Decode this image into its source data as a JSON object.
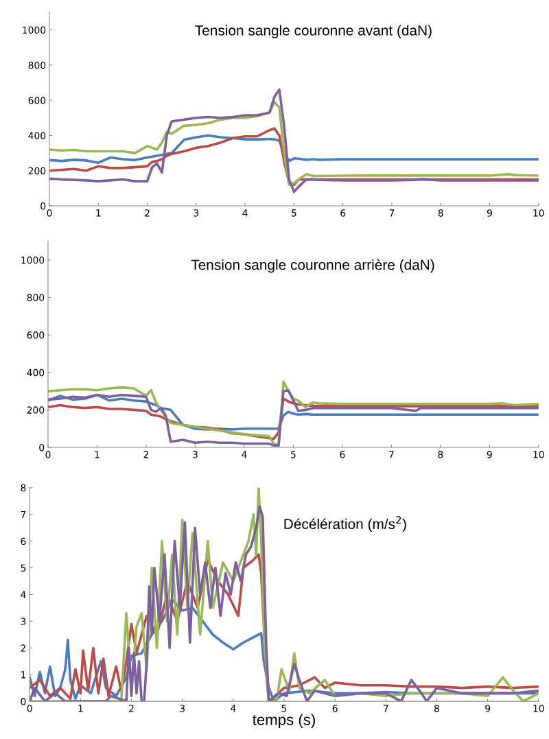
{
  "chart_data": [
    {
      "type": "line",
      "title": "Tension sangle couronne avant (daN)",
      "xlim": [
        0,
        10
      ],
      "xticks": [
        0,
        1,
        2,
        3,
        4,
        5,
        6,
        7,
        8,
        9,
        10
      ],
      "ylim": [
        0,
        1100
      ],
      "yticks": [
        0,
        200,
        400,
        600,
        800,
        1000
      ],
      "grid": false,
      "legend": false,
      "x": [
        0,
        0.25,
        0.5,
        0.75,
        1,
        1.25,
        1.5,
        1.75,
        2,
        2.1,
        2.2,
        2.3,
        2.4,
        2.5,
        2.75,
        3,
        3.25,
        3.5,
        3.75,
        4,
        4.25,
        4.5,
        4.6,
        4.7,
        4.8,
        4.9,
        5,
        5.1,
        5.25,
        5.4,
        5.5,
        6,
        6.5,
        7,
        7.5,
        7.6,
        8,
        8.5,
        9,
        9.4,
        9.5,
        10
      ],
      "series": [
        {
          "color": "#4a7ebb",
          "values": [
            260,
            255,
            262,
            258,
            245,
            275,
            265,
            260,
            275,
            280,
            285,
            290,
            295,
            300,
            375,
            390,
            400,
            390,
            385,
            378,
            378,
            380,
            378,
            370,
            300,
            255,
            270,
            268,
            262,
            265,
            262,
            265,
            265,
            265,
            265,
            265,
            265,
            265,
            265,
            265,
            265,
            265
          ]
        },
        {
          "color": "#be4b48",
          "values": [
            200,
            205,
            210,
            200,
            225,
            215,
            215,
            220,
            225,
            250,
            255,
            265,
            285,
            295,
            310,
            330,
            340,
            360,
            385,
            395,
            395,
            430,
            440,
            400,
            250,
            130,
            120,
            150,
            150,
            150,
            150,
            150,
            150,
            150,
            150,
            150,
            150,
            150,
            150,
            150,
            150,
            150
          ]
        },
        {
          "color": "#98b954",
          "values": [
            320,
            315,
            318,
            310,
            310,
            310,
            310,
            300,
            340,
            330,
            320,
            360,
            420,
            410,
            455,
            460,
            470,
            490,
            500,
            500,
            510,
            530,
            590,
            560,
            300,
            120,
            130,
            150,
            180,
            170,
            170,
            172,
            172,
            172,
            172,
            172,
            172,
            172,
            172,
            180,
            175,
            172
          ]
        },
        {
          "color": "#7d60a0",
          "values": [
            155,
            150,
            148,
            145,
            140,
            145,
            150,
            140,
            140,
            220,
            240,
            190,
            400,
            480,
            490,
            500,
            505,
            500,
            505,
            515,
            515,
            530,
            620,
            660,
            450,
            150,
            80,
            110,
            150,
            150,
            148,
            145,
            145,
            145,
            148,
            152,
            145,
            145,
            145,
            145,
            145,
            145
          ]
        }
      ]
    },
    {
      "type": "line",
      "title": "Tension sangle couronne arrière (daN)",
      "xlim": [
        0,
        10
      ],
      "xticks": [
        0,
        1,
        2,
        3,
        4,
        5,
        6,
        7,
        8,
        9,
        10
      ],
      "ylim": [
        0,
        1100
      ],
      "yticks": [
        0,
        200,
        400,
        600,
        800,
        1000
      ],
      "grid": false,
      "legend": false,
      "x": [
        0,
        0.25,
        0.5,
        0.75,
        1,
        1.25,
        1.5,
        1.75,
        2,
        2.1,
        2.2,
        2.3,
        2.4,
        2.5,
        2.75,
        3,
        3.25,
        3.5,
        3.75,
        4,
        4.25,
        4.5,
        4.6,
        4.7,
        4.8,
        4.9,
        5,
        5.1,
        5.25,
        5.4,
        5.5,
        6,
        6.5,
        7,
        7.5,
        7.6,
        8,
        8.5,
        9,
        9.25,
        9.5,
        10
      ],
      "series": [
        {
          "color": "#4a7ebb",
          "values": [
            250,
            275,
            255,
            260,
            280,
            250,
            260,
            250,
            245,
            235,
            225,
            210,
            205,
            200,
            120,
            100,
            95,
            100,
            95,
            100,
            100,
            100,
            100,
            100,
            170,
            190,
            180,
            175,
            178,
            175,
            175,
            175,
            175,
            175,
            175,
            175,
            175,
            175,
            175,
            175,
            175,
            175
          ]
        },
        {
          "color": "#be4b48",
          "values": [
            215,
            225,
            215,
            210,
            215,
            205,
            205,
            200,
            195,
            175,
            170,
            165,
            150,
            140,
            120,
            110,
            105,
            95,
            75,
            70,
            60,
            50,
            45,
            80,
            260,
            245,
            235,
            230,
            225,
            222,
            220,
            220,
            220,
            220,
            220,
            220,
            220,
            220,
            220,
            220,
            220,
            220
          ]
        },
        {
          "color": "#98b954",
          "values": [
            300,
            305,
            310,
            310,
            305,
            315,
            320,
            315,
            275,
            305,
            240,
            200,
            160,
            130,
            120,
            110,
            100,
            90,
            80,
            70,
            65,
            60,
            20,
            10,
            350,
            300,
            260,
            250,
            215,
            240,
            235,
            232,
            232,
            232,
            232,
            232,
            232,
            232,
            232,
            235,
            225,
            232
          ]
        },
        {
          "color": "#7d60a0",
          "values": [
            255,
            260,
            270,
            265,
            280,
            270,
            280,
            275,
            270,
            200,
            190,
            210,
            170,
            30,
            40,
            25,
            30,
            25,
            25,
            20,
            20,
            20,
            10,
            10,
            300,
            305,
            250,
            195,
            200,
            210,
            210,
            210,
            210,
            210,
            195,
            210,
            210,
            210,
            210,
            210,
            210,
            210
          ]
        }
      ]
    },
    {
      "type": "line",
      "title": "Décélération (m/s$^{2}$)",
      "xlabel": "temps (s)",
      "xlim": [
        0,
        10
      ],
      "xticks": [
        0,
        1,
        2,
        3,
        4,
        5,
        6,
        7,
        8,
        9,
        10
      ],
      "ylim": [
        0,
        8
      ],
      "yticks": [
        0,
        1,
        2,
        3,
        4,
        5,
        6,
        7,
        8
      ],
      "grid": false,
      "legend": false,
      "series": [
        {
          "color": "#4a7ebb",
          "x": [
            0,
            0.1,
            0.2,
            0.3,
            0.4,
            0.5,
            0.6,
            0.7,
            0.75,
            0.8,
            0.9,
            1,
            1.2,
            1.4,
            1.5,
            1.7,
            1.9,
            2,
            2.2,
            2.4,
            2.6,
            2.8,
            3,
            3.2,
            3.4,
            3.6,
            3.8,
            4,
            4.2,
            4.4,
            4.55,
            4.6,
            4.7,
            4.8,
            5,
            5.5,
            6,
            6.5,
            7,
            7.5,
            8,
            8.5,
            9,
            9.5,
            10
          ],
          "values": [
            0.9,
            0.2,
            1.1,
            0.3,
            1.3,
            0.2,
            0.5,
            1.2,
            2.3,
            0.8,
            0.1,
            0.6,
            0.3,
            1.5,
            0.5,
            0.2,
            0.9,
            1.7,
            1.8,
            2.5,
            3,
            3.8,
            3.4,
            3.5,
            3,
            2.5,
            2.2,
            1.95,
            2.2,
            2.4,
            2.55,
            1.5,
            0.5,
            0,
            0.3,
            0.4,
            0.3,
            0.3,
            0.35,
            0.3,
            0.3,
            0.3,
            0.3,
            0.3,
            0.3
          ]
        },
        {
          "color": "#be4b48",
          "x": [
            0,
            0.2,
            0.4,
            0.6,
            0.8,
            0.9,
            1,
            1.05,
            1.15,
            1.25,
            1.35,
            1.45,
            1.55,
            1.7,
            1.8,
            1.9,
            2,
            2.1,
            2.3,
            2.5,
            2.7,
            2.9,
            3.1,
            3.3,
            3.5,
            3.7,
            3.9,
            4.1,
            4.2,
            4.4,
            4.5,
            4.55,
            4.65,
            4.7,
            5,
            5.3,
            5.6,
            5.8,
            6,
            6.5,
            7,
            7.5,
            8,
            8.5,
            9,
            9.5,
            10
          ],
          "values": [
            0.5,
            0.8,
            0.2,
            0.5,
            0.1,
            1.2,
            0.3,
            1.9,
            0.4,
            2,
            0.3,
            1.6,
            0.2,
            1.3,
            0.4,
            1.5,
            2.9,
            1.8,
            3.2,
            2.5,
            4,
            3,
            4.5,
            3.5,
            5.3,
            4.5,
            4,
            3.2,
            5,
            5.3,
            5.5,
            4.8,
            1,
            0,
            0.5,
            0.6,
            0.9,
            0.5,
            0.7,
            0.6,
            0.6,
            0.55,
            0.55,
            0.5,
            0.55,
            0.5,
            0.55
          ]
        },
        {
          "color": "#98b954",
          "x": [
            0,
            1.8,
            1.9,
            2,
            2.1,
            2.2,
            2.3,
            2.4,
            2.5,
            2.6,
            2.7,
            2.8,
            2.9,
            3,
            3.1,
            3.2,
            3.35,
            3.5,
            3.6,
            3.8,
            4,
            4.2,
            4.3,
            4.4,
            4.45,
            4.5,
            4.55,
            4.62,
            4.7,
            4.85,
            4.95,
            5.1,
            5.2,
            5.3,
            5.5,
            5.8,
            6,
            6.5,
            7,
            7.5,
            8,
            8.5,
            9,
            9.3,
            9.5,
            9.7,
            10
          ],
          "values": [
            0,
            0,
            3.3,
            0.5,
            2.8,
            3.3,
            1.2,
            5,
            2,
            6,
            3,
            5.5,
            2.5,
            6.8,
            3.5,
            6.3,
            2.5,
            6,
            3.5,
            5.2,
            4.5,
            5.5,
            6,
            7,
            5.5,
            8,
            6,
            2,
            0,
            0,
            1.2,
            0.4,
            1.8,
            0.5,
            0.3,
            0.8,
            0.2,
            0.3,
            0.2,
            0.3,
            0.3,
            0.3,
            0.2,
            0.9,
            0.4,
            0,
            0.3
          ]
        },
        {
          "color": "#7d60a0",
          "x": [
            0,
            0.1,
            0.3,
            0.5,
            0.7,
            1.5,
            1.6,
            1.9,
            1.95,
            2,
            2.05,
            2.1,
            2.15,
            2.2,
            2.25,
            2.3,
            2.35,
            2.4,
            2.45,
            2.55,
            2.65,
            2.75,
            2.85,
            2.95,
            3.05,
            3.15,
            3.25,
            3.35,
            3.45,
            3.55,
            3.65,
            3.75,
            3.85,
            3.95,
            4.05,
            4.15,
            4.25,
            4.35,
            4.45,
            4.52,
            4.58,
            4.65,
            4.7,
            4.9,
            5.05,
            5.2,
            5.3,
            5.45,
            5.6,
            5.8,
            6,
            6.5,
            7,
            7.3,
            7.5,
            7.7,
            7.8,
            8,
            8.5,
            9,
            9.5,
            10
          ],
          "values": [
            0,
            0.5,
            0,
            0.3,
            0,
            0,
            0.2,
            0,
            2,
            0.2,
            1.8,
            0.3,
            1.5,
            0,
            0,
            1.5,
            4.3,
            2.5,
            5,
            3,
            5.5,
            2,
            6,
            3.5,
            6.7,
            2.2,
            6.5,
            4,
            5.2,
            3.5,
            5,
            3.2,
            4.8,
            4,
            5.2,
            4.5,
            5.5,
            5.8,
            6.5,
            7.3,
            6.9,
            2,
            0,
            0.3,
            0.2,
            1.4,
            0.8,
            0,
            0.4,
            0.3,
            0.2,
            0.3,
            0.3,
            0,
            0.8,
            0.3,
            0,
            0.5,
            0.3,
            0.3,
            0.3,
            0.4
          ]
        }
      ]
    }
  ]
}
